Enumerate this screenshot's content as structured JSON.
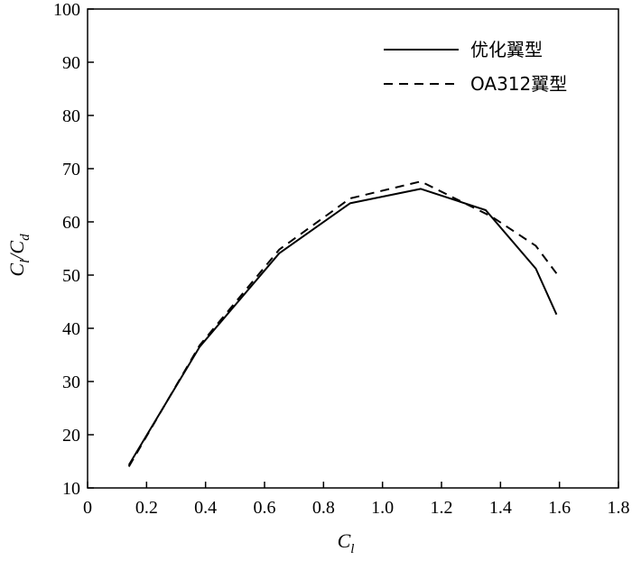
{
  "chart_data": {
    "type": "line",
    "xlabel": {
      "main": "C",
      "sub": "l"
    },
    "ylabel": {
      "num_main": "C",
      "num_sub": "l",
      "sep": "/",
      "den_main": "C",
      "den_sub": "d"
    },
    "xlim": [
      0,
      1.8
    ],
    "ylim": [
      10,
      100
    ],
    "xticks": [
      0,
      0.2,
      0.4,
      0.6,
      0.8,
      1.0,
      1.2,
      1.4,
      1.6,
      1.8
    ],
    "xtick_labels": [
      "0",
      "0.2",
      "0.4",
      "0.6",
      "0.8",
      "1.0",
      "1.2",
      "1.4",
      "1.6",
      "1.8"
    ],
    "yticks": [
      10,
      20,
      30,
      40,
      50,
      60,
      70,
      80,
      90,
      100
    ],
    "ytick_labels": [
      "10",
      "20",
      "30",
      "40",
      "50",
      "60",
      "70",
      "80",
      "90",
      "100"
    ],
    "grid": false,
    "legend_position": "top-right",
    "series": [
      {
        "name": "优化翼型",
        "style": "solid",
        "color": "#000000",
        "x": [
          0.14,
          0.38,
          0.65,
          0.89,
          1.13,
          1.35,
          1.52,
          1.59
        ],
        "y": [
          14.3,
          36.5,
          54.1,
          63.5,
          66.2,
          62.2,
          51.2,
          42.6
        ]
      },
      {
        "name": "OA312翼型",
        "style": "dashed",
        "color": "#000000",
        "x": [
          0.14,
          0.38,
          0.65,
          0.89,
          1.13,
          1.37,
          1.52,
          1.59
        ],
        "y": [
          14.0,
          36.8,
          54.8,
          64.4,
          67.6,
          61.0,
          55.5,
          50.3
        ]
      }
    ]
  }
}
